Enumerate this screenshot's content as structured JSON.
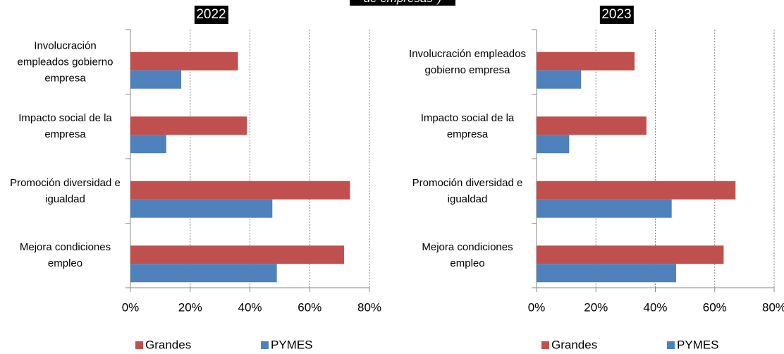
{
  "header": {
    "text": "de empresas*)"
  },
  "chart_data": [
    {
      "type": "barh",
      "title": "2022",
      "categories": [
        "Involucración empleados gobierno empresa",
        "Impacto social de la empresa",
        "Promoción diversidad e igualdad",
        "Mejora condiciones empleo"
      ],
      "series": [
        {
          "name": "Grandes",
          "color": "#c0504d",
          "values": [
            36,
            39,
            73.5,
            71.5
          ]
        },
        {
          "name": "PYMES",
          "color": "#4f81bd",
          "values": [
            17,
            12,
            47.5,
            49
          ]
        }
      ],
      "xlim": [
        0,
        80
      ],
      "xticks": [
        {
          "value": 0,
          "label": "0%"
        },
        {
          "value": 20,
          "label": "20%"
        },
        {
          "value": 40,
          "label": "40%"
        },
        {
          "value": 60,
          "label": "60%"
        },
        {
          "value": 80,
          "label": "80%"
        }
      ],
      "grid": true,
      "legend": "bottom"
    },
    {
      "type": "barh",
      "title": "2023",
      "categories": [
        "Involucración empleados gobierno empresa",
        "Impacto social de la empresa",
        "Promoción diversidad e igualdad",
        "Mejora condiciones empleo"
      ],
      "series": [
        {
          "name": "Grandes",
          "color": "#c0504d",
          "values": [
            33,
            37,
            67,
            63
          ]
        },
        {
          "name": "PYMES",
          "color": "#4f81bd",
          "values": [
            15,
            11,
            45.5,
            47
          ]
        }
      ],
      "xlim": [
        0,
        80
      ],
      "xticks": [
        {
          "value": 0,
          "label": "0%"
        },
        {
          "value": 20,
          "label": "20%"
        },
        {
          "value": 40,
          "label": "40%"
        },
        {
          "value": 60,
          "label": "60%"
        },
        {
          "value": 80,
          "label": "80%"
        }
      ],
      "grid": true,
      "legend": "bottom"
    }
  ]
}
